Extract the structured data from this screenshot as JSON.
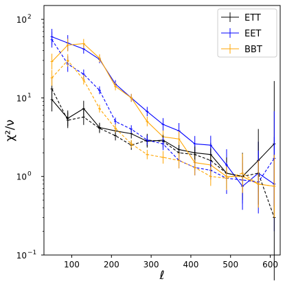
{
  "chart_data": {
    "type": "line",
    "xlabel": "ℓ",
    "ylabel": "χ²/ν",
    "yscale": "log",
    "xlim": [
      30,
      625
    ],
    "ylim": [
      0.1,
      150
    ],
    "x_ticks": [
      "100",
      "200",
      "300",
      "400",
      "500",
      "600"
    ],
    "x_tick_values": [
      100,
      200,
      300,
      400,
      500,
      600
    ],
    "y_ticks": [
      {
        "value": 0.1,
        "base": "10",
        "exp": "−1"
      },
      {
        "value": 1,
        "base": "10",
        "exp": "0"
      },
      {
        "value": 10,
        "base": "10",
        "exp": "1"
      },
      {
        "value": 100,
        "base": "10",
        "exp": "2"
      }
    ],
    "legend_position": "top-right",
    "grid": false,
    "x": [
      50,
      90,
      130,
      170,
      210,
      250,
      290,
      330,
      370,
      410,
      450,
      490,
      530,
      570,
      610
    ],
    "series": [
      {
        "name": "ETT",
        "color": "#000000",
        "style": "solid",
        "legend": true,
        "values": [
          9.5,
          5.5,
          7.3,
          4.2,
          3.8,
          3.5,
          2.8,
          2.9,
          2.2,
          2.0,
          1.9,
          1.1,
          1.0,
          1.6,
          2.6
        ],
        "err": [
          0.15,
          0.1,
          0.1,
          0.06,
          0.06,
          0.06,
          0.08,
          0.08,
          0.1,
          0.1,
          0.15,
          0.2,
          0.3,
          0.4,
          0.8
        ]
      },
      {
        "name": "EET",
        "color": "#0000ff",
        "style": "solid",
        "legend": true,
        "values": [
          60,
          50,
          42,
          31,
          15,
          10,
          6.7,
          4.6,
          3.8,
          2.6,
          2.5,
          1.4,
          0.75,
          1.1,
          0.8
        ],
        "err": [
          0.1,
          0.1,
          0.06,
          0.05,
          0.05,
          0.05,
          0.06,
          0.08,
          0.1,
          0.1,
          0.12,
          0.2,
          0.3,
          0.4,
          0.6
        ]
      },
      {
        "name": "BBT",
        "color": "#ffa500",
        "style": "solid",
        "legend": true,
        "values": [
          29,
          47,
          49,
          32,
          14,
          10,
          5.0,
          3.2,
          3.0,
          1.5,
          1.4,
          1.0,
          1.0,
          0.8,
          0.75
        ],
        "err": [
          0.1,
          0.08,
          0.06,
          0.05,
          0.05,
          0.05,
          0.06,
          0.08,
          0.1,
          0.1,
          0.12,
          0.15,
          0.25,
          0.3,
          0.4
        ]
      },
      {
        "name": "",
        "color": "#000000",
        "style": "dashed",
        "legend": false,
        "values": [
          13,
          5.2,
          5.7,
          4.1,
          3.3,
          2.5,
          2.9,
          2.8,
          2.0,
          1.9,
          1.6,
          1.1,
          1.0,
          1.1,
          0.3
        ],
        "err": [
          0.15,
          0.1,
          0.1,
          0.06,
          0.06,
          0.06,
          0.08,
          0.08,
          0.1,
          0.1,
          0.15,
          0.2,
          0.3,
          0.4,
          0.8
        ]
      },
      {
        "name": "",
        "color": "#0000ff",
        "style": "dashed",
        "legend": false,
        "values": [
          55,
          27,
          20,
          12.5,
          5.0,
          4.0,
          2.9,
          2.6,
          1.6,
          1.3,
          1.2,
          0.95,
          0.9,
          0.85,
          1.7
        ],
        "err": [
          0.1,
          0.1,
          0.06,
          0.05,
          0.05,
          0.05,
          0.06,
          0.08,
          0.1,
          0.1,
          0.12,
          0.2,
          0.3,
          0.4,
          0.6
        ]
      },
      {
        "name": "",
        "color": "#ffa500",
        "style": "dashed",
        "legend": false,
        "values": [
          18,
          30,
          17,
          7.3,
          4.1,
          2.6,
          1.9,
          1.75,
          1.6,
          1.3,
          1.0,
          0.95,
          1.1,
          0.8,
          0.75
        ],
        "err": [
          0.1,
          0.08,
          0.06,
          0.05,
          0.05,
          0.05,
          0.06,
          0.08,
          0.1,
          0.1,
          0.12,
          0.15,
          0.25,
          0.3,
          0.4
        ]
      }
    ]
  }
}
